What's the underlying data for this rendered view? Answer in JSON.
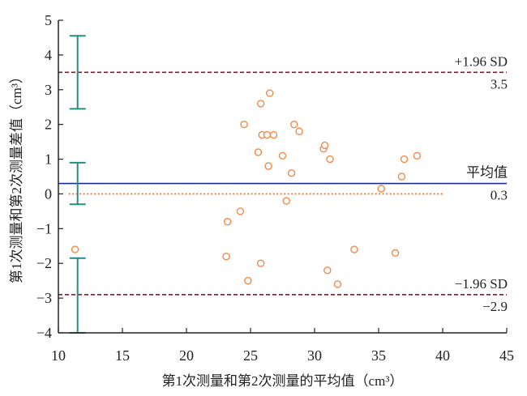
{
  "chart_data": {
    "type": "scatter",
    "title": "",
    "xlabel": "第1次测量和第2次测量的平均值（cm³）",
    "ylabel": "第1次测量和第2次测量差值（cm³）",
    "xlim": [
      10,
      45
    ],
    "ylim": [
      -4,
      5
    ],
    "x_ticks": [
      10,
      15,
      20,
      25,
      30,
      35,
      40,
      45
    ],
    "y_ticks": [
      -4,
      -3,
      -2,
      -1,
      0,
      1,
      2,
      3,
      4,
      5
    ],
    "grid": false,
    "points": [
      {
        "x": 11.3,
        "y": -1.6
      },
      {
        "x": 23.2,
        "y": -0.8
      },
      {
        "x": 23.1,
        "y": -1.8
      },
      {
        "x": 24.2,
        "y": -0.5
      },
      {
        "x": 24.5,
        "y": 2.0
      },
      {
        "x": 24.8,
        "y": -2.5
      },
      {
        "x": 25.6,
        "y": 1.2
      },
      {
        "x": 25.8,
        "y": 2.6
      },
      {
        "x": 25.8,
        "y": -2.0
      },
      {
        "x": 25.9,
        "y": 1.7
      },
      {
        "x": 26.3,
        "y": 1.7
      },
      {
        "x": 26.4,
        "y": 0.8
      },
      {
        "x": 26.5,
        "y": 2.9
      },
      {
        "x": 26.8,
        "y": 1.7
      },
      {
        "x": 27.5,
        "y": 1.1
      },
      {
        "x": 27.8,
        "y": -0.2
      },
      {
        "x": 28.2,
        "y": 0.6
      },
      {
        "x": 28.4,
        "y": 2.0
      },
      {
        "x": 28.8,
        "y": 1.8
      },
      {
        "x": 30.7,
        "y": 1.3
      },
      {
        "x": 30.8,
        "y": 1.4
      },
      {
        "x": 31.0,
        "y": -2.2
      },
      {
        "x": 31.2,
        "y": 1.0
      },
      {
        "x": 31.8,
        "y": -2.6
      },
      {
        "x": 33.1,
        "y": -1.6
      },
      {
        "x": 35.2,
        "y": 0.15
      },
      {
        "x": 36.3,
        "y": -1.7
      },
      {
        "x": 36.8,
        "y": 0.5
      },
      {
        "x": 37.0,
        "y": 1.0
      },
      {
        "x": 38.0,
        "y": 1.1
      }
    ],
    "reference_lines": [
      {
        "label": "+1.96 SD",
        "value": 3.5,
        "value_label": "3.5",
        "style": "dashed",
        "color": "#8b1a1a"
      },
      {
        "label": "平均值",
        "value": 0.3,
        "value_label": "0.3",
        "style": "solid",
        "color": "#1f2a8a"
      },
      {
        "label": "−1.96 SD",
        "value": -2.9,
        "value_label": "−2.9",
        "style": "dashed",
        "color": "#8b1a1a"
      }
    ],
    "zero_line": {
      "value": 0,
      "x_from": 10.8,
      "x_to": 40,
      "style": "dotted",
      "color": "#f07a2a"
    },
    "error_bars": [
      {
        "x": 11.5,
        "low": 2.45,
        "high": 4.55
      },
      {
        "x": 11.5,
        "low": -0.3,
        "high": 0.9
      },
      {
        "x": 11.5,
        "low": -4.0,
        "high": -1.85
      }
    ],
    "colors": {
      "point": "#f08a4a",
      "error_bar": "#2a8a86",
      "axis": "#222222"
    }
  }
}
